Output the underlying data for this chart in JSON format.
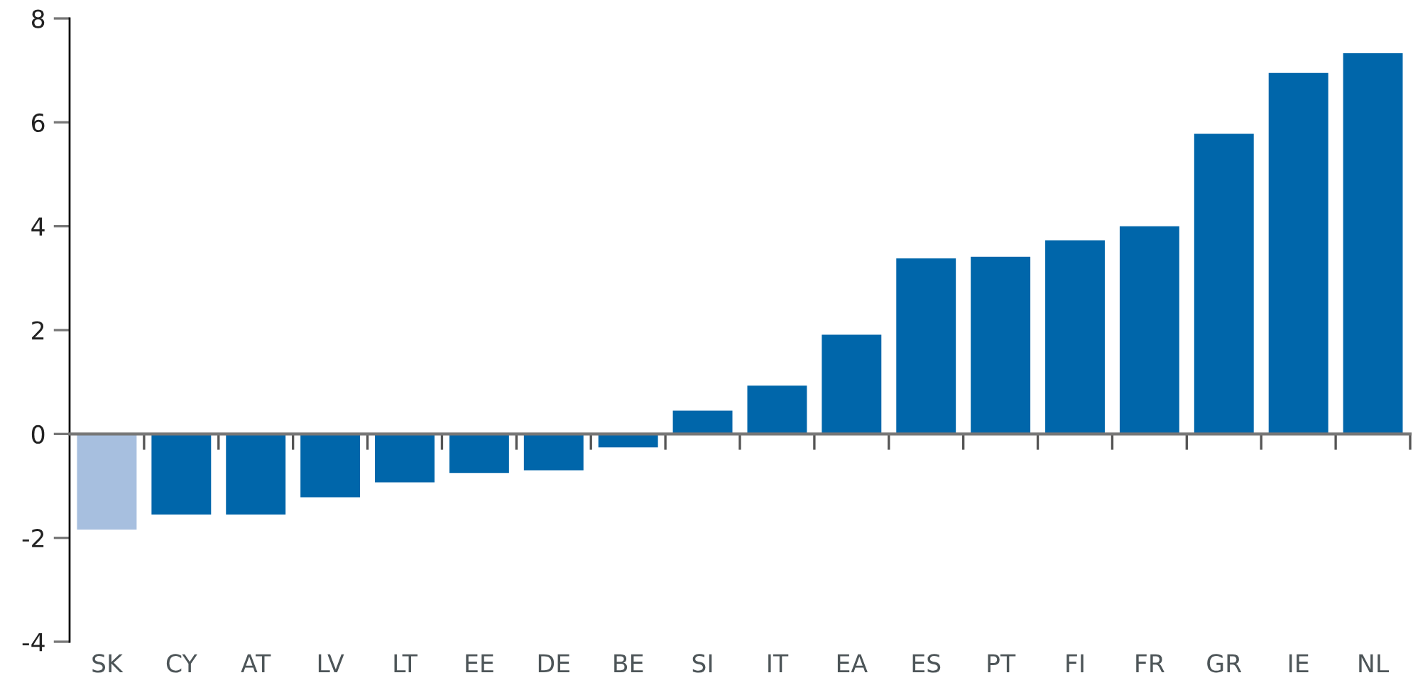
{
  "chart_data": {
    "type": "bar",
    "categories": [
      "SK",
      "CY",
      "AT",
      "LV",
      "LT",
      "EE",
      "DE",
      "BE",
      "SI",
      "IT",
      "EA",
      "ES",
      "PT",
      "FI",
      "FR",
      "GR",
      "IE",
      "NL"
    ],
    "values": [
      -1.84,
      -1.55,
      -1.55,
      -1.22,
      -0.93,
      -0.75,
      -0.7,
      -0.26,
      0.45,
      0.93,
      1.91,
      3.38,
      3.41,
      3.73,
      4.0,
      5.78,
      6.95,
      7.33
    ],
    "colors": [
      "#a7bfdf",
      "#0066aa",
      "#0066aa",
      "#0066aa",
      "#0066aa",
      "#0066aa",
      "#0066aa",
      "#0066aa",
      "#0066aa",
      "#0066aa",
      "#0066aa",
      "#0066aa",
      "#0066aa",
      "#0066aa",
      "#0066aa",
      "#0066aa",
      "#0066aa",
      "#0066aa"
    ],
    "ylim": [
      -4,
      8
    ],
    "yticks": [
      -4,
      -2,
      0,
      2,
      4,
      6,
      8
    ]
  }
}
